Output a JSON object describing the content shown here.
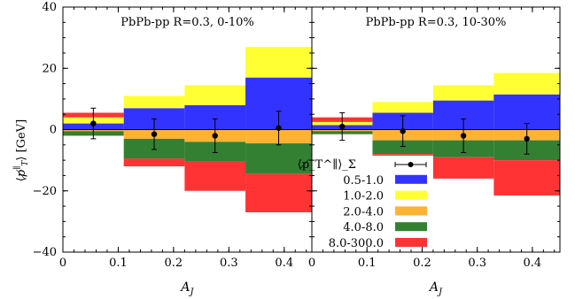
{
  "chart_data": [
    {
      "type": "bar",
      "stacked": "positive-and-negative",
      "title": "PbPb-pp R=0.3, 0-10%",
      "xlabel": "A_J",
      "ylabel": "⟨p̸_T^∥⟩ [GeV]",
      "xlim": [
        0,
        0.45
      ],
      "ylim": [
        -40,
        40
      ],
      "xticks": [
        "0",
        "0.1",
        "0.2",
        "0.3",
        "0.4"
      ],
      "yticks": [
        "−40",
        "−20",
        "0",
        "20",
        "40"
      ],
      "bin_edges": [
        0,
        0.11,
        0.22,
        0.33,
        0.45
      ],
      "series": [
        {
          "name": "0.5-1.0",
          "color": "#3333ff",
          "values": [
            2.0,
            7.0,
            8.0,
            17.0
          ]
        },
        {
          "name": "1.0-2.0",
          "color": "#ffff33",
          "values": [
            2.0,
            4.0,
            6.5,
            10.0
          ]
        },
        {
          "name": "2.0-4.0",
          "color": "#ffb233",
          "values": [
            -0.5,
            -3.0,
            -4.0,
            -4.5
          ]
        },
        {
          "name": "4.0-8.0",
          "color": "#338033",
          "values": [
            -1.5,
            -6.5,
            -6.5,
            -10.0
          ]
        },
        {
          "name": "8.0-300.0",
          "color": "#ff3333",
          "values": [
            1.5,
            -2.5,
            -9.5,
            -12.5
          ]
        }
      ],
      "total": {
        "name": "⟨p̸_T^∥⟩_Σ",
        "x": [
          0.055,
          0.165,
          0.275,
          0.39
        ],
        "values": [
          2.0,
          -1.5,
          -2.0,
          0.5
        ],
        "err": [
          5.0,
          5.0,
          5.5,
          5.5
        ]
      }
    },
    {
      "type": "bar",
      "stacked": "positive-and-negative",
      "title": "PbPb-pp R=0.3, 10-30%",
      "xlabel": "A_J",
      "xlim": [
        0,
        0.45
      ],
      "ylim": [
        -40,
        40
      ],
      "xticks": [
        "0",
        "0.1",
        "0.2",
        "0.3",
        "0.4"
      ],
      "bin_edges": [
        0,
        0.11,
        0.22,
        0.33,
        0.45
      ],
      "series": [
        {
          "name": "0.5-1.0",
          "color": "#3333ff",
          "values": [
            1.5,
            5.5,
            9.5,
            11.5
          ]
        },
        {
          "name": "1.0-2.0",
          "color": "#ffff33",
          "values": [
            1.0,
            3.5,
            5.0,
            7.0
          ]
        },
        {
          "name": "2.0-4.0",
          "color": "#ffb233",
          "values": [
            -0.5,
            -3.5,
            -3.5,
            -3.5
          ]
        },
        {
          "name": "4.0-8.0",
          "color": "#338033",
          "values": [
            -1.0,
            -4.5,
            -5.5,
            -6.5
          ]
        },
        {
          "name": "8.0-300.0",
          "color": "#ff3333",
          "values": [
            1.5,
            -0.5,
            -7.0,
            -11.5
          ]
        }
      ],
      "total": {
        "name": "⟨p̸_T^∥⟩_Σ",
        "x": [
          0.055,
          0.165,
          0.275,
          0.39
        ],
        "values": [
          1.0,
          -0.5,
          -2.0,
          -3.0
        ],
        "err": [
          4.5,
          5.0,
          5.5,
          5.0
        ]
      }
    }
  ],
  "legend": {
    "placement": "lower-center",
    "total_label": "⟨p̸_T^∥⟩_Σ",
    "entries": [
      "0.5-1.0",
      "1.0-2.0",
      "2.0-4.0",
      "4.0-8.0",
      "8.0-300.0"
    ]
  }
}
